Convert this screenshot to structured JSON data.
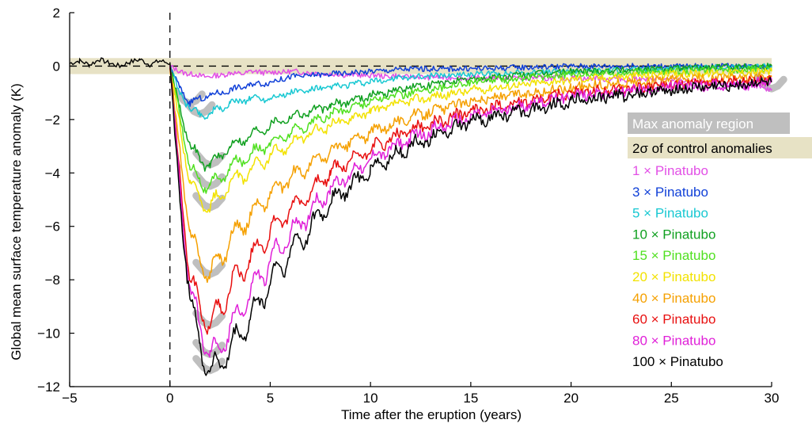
{
  "chart_data": {
    "type": "line",
    "title": "",
    "xlabel": "Time after the eruption (years)",
    "ylabel": "Global mean surface temperature anomaly (K)",
    "xlim": [
      -5,
      30
    ],
    "ylim": [
      -12,
      2
    ],
    "xticks": [
      -5,
      0,
      5,
      10,
      15,
      20,
      25,
      30
    ],
    "yticks": [
      2,
      0,
      -2,
      -4,
      -6,
      -8,
      -10,
      -12
    ],
    "grid": false,
    "legend_position": "right",
    "control_band": {
      "label": "2σ of control anomalies",
      "color": "#e7e2c5",
      "ymin": -0.3,
      "ymax": 0.3
    },
    "max_region": {
      "label": "Max anomaly region",
      "color": "#bfbfbf"
    },
    "reference_lines": {
      "eruption_x": 0,
      "zero_y": 0
    },
    "control_series": {
      "name": "control",
      "color": "#000000",
      "x": [
        -5,
        -4.5,
        -4,
        -3.5,
        -3,
        -2.5,
        -2,
        -1.5,
        -1,
        -0.5,
        0
      ],
      "values": [
        0.1,
        0.2,
        0.05,
        0.25,
        0.1,
        0.0,
        0.15,
        0.25,
        0.05,
        0.2,
        0.1
      ]
    },
    "series": [
      {
        "name": "1 × Pinatubo",
        "color": "#e24fe6",
        "x": [
          0,
          0.5,
          1,
          1.5,
          2,
          2.5,
          3,
          3.5,
          4,
          5,
          6,
          8,
          10,
          12,
          15,
          20,
          25,
          30
        ],
        "values": [
          0,
          -0.2,
          -0.3,
          -0.35,
          -0.4,
          -0.35,
          -0.25,
          -0.3,
          -0.2,
          -0.25,
          -0.2,
          -0.3,
          -0.35,
          -0.4,
          -0.45,
          -0.45,
          -0.5,
          -0.85
        ]
      },
      {
        "name": "3 × Pinatubo",
        "color": "#1040d8",
        "x": [
          0,
          0.5,
          1,
          1.5,
          2,
          2.5,
          3,
          4,
          5,
          6,
          8,
          10,
          12,
          15,
          20,
          25,
          30
        ],
        "values": [
          0,
          -0.8,
          -1.4,
          -1.2,
          -1.1,
          -1.0,
          -0.9,
          -0.7,
          -0.6,
          -0.4,
          -0.3,
          -0.2,
          -0.1,
          -0.1,
          0.0,
          0.0,
          0.0
        ]
      },
      {
        "name": "5 × Pinatubo",
        "color": "#18c8d2",
        "x": [
          0,
          0.5,
          1,
          1.5,
          2,
          2.5,
          3,
          4,
          5,
          6,
          8,
          10,
          12,
          15,
          20,
          25,
          30
        ],
        "values": [
          0,
          -1.0,
          -1.6,
          -1.8,
          -1.8,
          -1.6,
          -1.4,
          -1.2,
          -1.2,
          -1.0,
          -0.8,
          -0.6,
          -0.4,
          -0.3,
          -0.2,
          -0.1,
          0.0
        ]
      },
      {
        "name": "10 × Pinatubo",
        "color": "#10a020",
        "x": [
          0,
          0.5,
          1,
          1.5,
          2,
          2.5,
          3,
          4,
          5,
          6,
          8,
          10,
          12,
          15,
          20,
          25,
          30
        ],
        "values": [
          0,
          -1.5,
          -3.0,
          -3.5,
          -3.7,
          -3.4,
          -3.0,
          -2.6,
          -2.2,
          -1.9,
          -1.5,
          -1.1,
          -0.8,
          -0.5,
          -0.2,
          -0.1,
          0.0
        ]
      },
      {
        "name": "15 × Pinatubo",
        "color": "#50e020",
        "x": [
          0,
          0.5,
          1,
          1.5,
          2,
          2.5,
          3,
          4,
          5,
          6,
          8,
          10,
          12,
          15,
          20,
          25,
          30
        ],
        "values": [
          0,
          -1.8,
          -3.8,
          -4.3,
          -4.5,
          -4.2,
          -3.8,
          -3.3,
          -2.9,
          -2.5,
          -1.8,
          -1.3,
          -1.0,
          -0.6,
          -0.3,
          -0.2,
          -0.1
        ]
      },
      {
        "name": "20 × Pinatubo",
        "color": "#f2e200",
        "x": [
          0,
          0.5,
          1,
          1.5,
          2,
          2.5,
          3,
          4,
          5,
          6,
          8,
          10,
          12,
          15,
          20,
          25,
          30
        ],
        "values": [
          0,
          -2.2,
          -4.3,
          -5.0,
          -5.3,
          -4.9,
          -4.4,
          -3.9,
          -3.4,
          -2.9,
          -2.2,
          -1.7,
          -1.3,
          -0.9,
          -0.5,
          -0.3,
          -0.2
        ]
      },
      {
        "name": "40 × Pinatubo",
        "color": "#f5a000",
        "x": [
          0,
          0.5,
          1,
          1.5,
          2,
          2.5,
          3,
          4,
          5,
          6,
          8,
          10,
          12,
          15,
          20,
          25,
          30
        ],
        "values": [
          0,
          -3.2,
          -6.3,
          -7.3,
          -7.8,
          -7.2,
          -6.5,
          -5.6,
          -4.8,
          -4.2,
          -3.2,
          -2.5,
          -1.9,
          -1.3,
          -0.8,
          -0.5,
          -0.4
        ]
      },
      {
        "name": "60 × Pinatubo",
        "color": "#e81010",
        "x": [
          0,
          0.5,
          1,
          1.5,
          2,
          2.5,
          3,
          4,
          5,
          6,
          8,
          10,
          12,
          15,
          20,
          25,
          30
        ],
        "values": [
          0,
          -4.0,
          -8.0,
          -9.0,
          -9.7,
          -9.0,
          -8.3,
          -7.2,
          -6.2,
          -5.4,
          -4.0,
          -3.1,
          -2.4,
          -1.7,
          -1.0,
          -0.7,
          -0.5
        ]
      },
      {
        "name": "80 × Pinatubo",
        "color": "#e020d8",
        "x": [
          0,
          0.5,
          1,
          1.5,
          2,
          2.5,
          3,
          4,
          5,
          6,
          8,
          10,
          12,
          15,
          20,
          25,
          30
        ],
        "values": [
          0,
          -4.5,
          -8.4,
          -9.8,
          -10.8,
          -10.6,
          -9.8,
          -8.5,
          -7.3,
          -6.3,
          -4.6,
          -3.5,
          -2.7,
          -1.9,
          -1.1,
          -0.8,
          -0.6
        ]
      },
      {
        "name": "100 × Pinatubo",
        "color": "#000000",
        "x": [
          0,
          0.5,
          1,
          1.5,
          2,
          2.5,
          3,
          4,
          5,
          6,
          8,
          10,
          12,
          15,
          20,
          25,
          30
        ],
        "values": [
          0,
          -5.0,
          -8.6,
          -10.5,
          -11.4,
          -11.2,
          -10.6,
          -9.5,
          -8.1,
          -7.0,
          -5.1,
          -3.9,
          -3.0,
          -2.1,
          -1.3,
          -0.9,
          -0.6
        ]
      }
    ]
  }
}
